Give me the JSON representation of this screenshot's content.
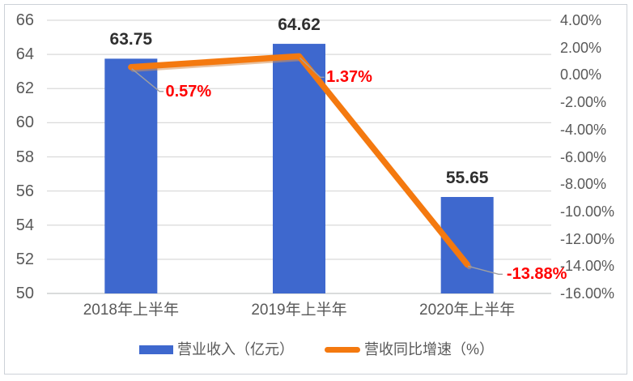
{
  "chart_data": {
    "type": "bar+line combo",
    "categories": [
      "2018年上半年",
      "2019年上半年",
      "2020年上半年"
    ],
    "series": [
      {
        "name": "营业收入（亿元）",
        "type": "bar",
        "axis": "left",
        "values": [
          63.75,
          64.62,
          55.65
        ],
        "labels": [
          "63.75",
          "64.62",
          "55.65"
        ],
        "color": "#3E68CE"
      },
      {
        "name": "营收同比增速（%）",
        "type": "line",
        "axis": "right",
        "values": [
          0.57,
          1.37,
          -13.88
        ],
        "labels": [
          "0.57%",
          "1.37%",
          "-13.88%"
        ],
        "color": "#F4790F",
        "label_color": "#FF0000"
      }
    ],
    "left_axis": {
      "min": 50,
      "max": 66,
      "step": 2,
      "ticks": [
        "66",
        "64",
        "62",
        "60",
        "58",
        "56",
        "54",
        "52",
        "50"
      ]
    },
    "right_axis": {
      "min": -16,
      "max": 4,
      "step": 2,
      "ticks": [
        "4.00%",
        "2.00%",
        "0.00%",
        "-2.00%",
        "-4.00%",
        "-6.00%",
        "-8.00%",
        "-10.00%",
        "-12.00%",
        "-14.00%",
        "-16.00%"
      ]
    },
    "grid": true,
    "legend_position": "bottom",
    "title": ""
  },
  "legend": {
    "bar_label": "营业收入（亿元）",
    "line_label": "营收同比增速（%）"
  },
  "colors": {
    "bar": "#3E68CE",
    "line": "#F4790F",
    "line_shadow": "rgba(214,146,88,0.55)",
    "value_label": "#2F2F2F",
    "callout_label": "#FF0000",
    "axis_text": "#595959",
    "gridline": "#DADADA",
    "baseline": "#C4C6C8",
    "leader": "#A0A0A0",
    "frame_border": "#CDD2D8",
    "background": "#FFFFFF"
  }
}
